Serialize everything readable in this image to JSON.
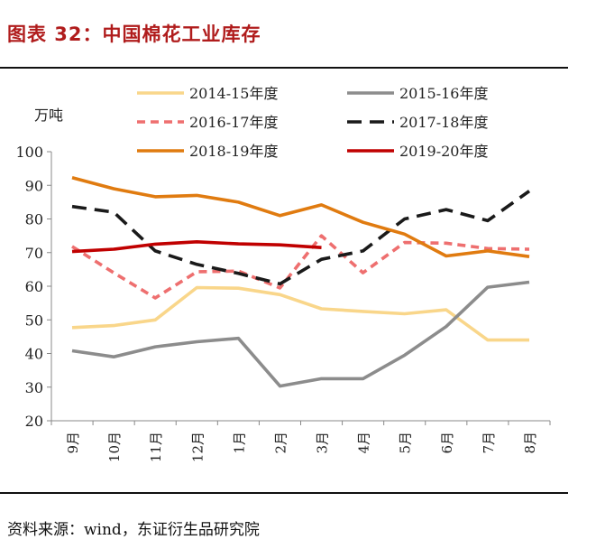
{
  "figure": {
    "title": "图表 32：中国棉花工业库存",
    "source": "资料来源：wind，东证衍生品研究院"
  },
  "colors": {
    "title_red": "#b01c1c",
    "s2014": "#f9d68a",
    "s2015": "#8c8c8c",
    "s2016": "#ee6f6f",
    "s2017": "#1a1a1a",
    "s2018": "#e07b10",
    "s2019": "#c00000"
  },
  "chart_data": {
    "type": "line",
    "title": "",
    "xlabel": "",
    "ylabel": "万吨",
    "categories": [
      "9月",
      "10月",
      "11月",
      "12月",
      "1月",
      "2月",
      "3月",
      "4月",
      "5月",
      "6月",
      "7月",
      "8月"
    ],
    "ylim": [
      20,
      100
    ],
    "yticks": [
      20,
      30,
      40,
      50,
      60,
      70,
      80,
      90,
      100
    ],
    "grid": false,
    "legend_position": "top",
    "series": [
      {
        "name": "2014-15年度",
        "color": "#f9d68a",
        "style": "solid",
        "values": [
          47.7,
          48.3,
          50.0,
          59.6,
          59.4,
          57.5,
          53.3,
          52.5,
          51.8,
          53.0,
          44.0,
          44.0
        ]
      },
      {
        "name": "2015-16年度",
        "color": "#8c8c8c",
        "style": "solid",
        "values": [
          40.8,
          39.0,
          42.0,
          43.5,
          44.5,
          30.3,
          32.5,
          32.5,
          39.5,
          48.0,
          59.7,
          61.2
        ]
      },
      {
        "name": "2016-17年度",
        "color": "#ee6f6f",
        "style": "dashed",
        "values": [
          71.8,
          64.0,
          56.5,
          64.3,
          64.5,
          59.5,
          75.0,
          64.0,
          73.0,
          72.8,
          71.2,
          71.0
        ]
      },
      {
        "name": "2017-18年度",
        "color": "#1a1a1a",
        "style": "longdash",
        "values": [
          83.7,
          82.0,
          70.5,
          66.5,
          63.8,
          60.7,
          68.0,
          70.5,
          80.0,
          82.8,
          79.5,
          88.3
        ]
      },
      {
        "name": "2018-19年度",
        "color": "#e07b10",
        "style": "solid",
        "values": [
          92.3,
          89.0,
          86.6,
          87.0,
          85.0,
          81.0,
          84.2,
          79.0,
          75.5,
          69.0,
          70.5,
          68.8
        ]
      },
      {
        "name": "2019-20年度",
        "color": "#c00000",
        "style": "solid",
        "values": [
          70.3,
          71.0,
          72.5,
          73.2,
          72.6,
          72.3,
          71.5,
          null,
          null,
          null,
          null,
          null
        ]
      }
    ]
  }
}
